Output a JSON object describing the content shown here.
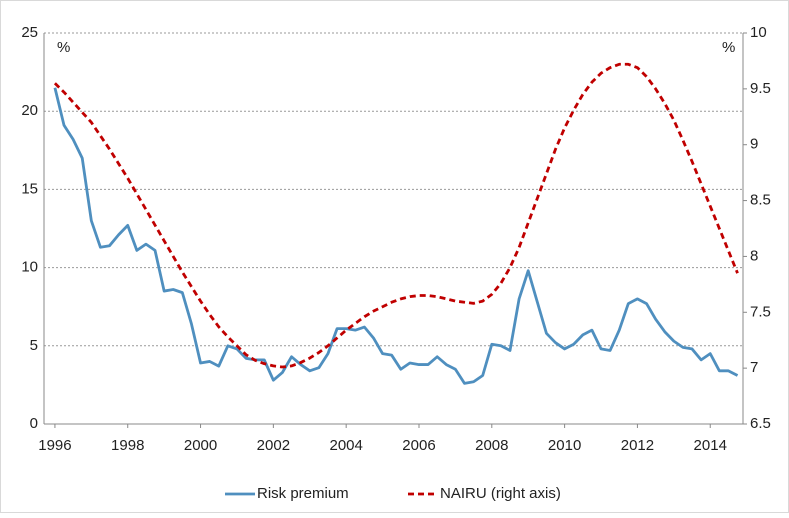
{
  "chart_data": {
    "type": "line",
    "y_label": "%",
    "y2_label": "%",
    "x": [
      1996,
      1996.25,
      1996.5,
      1996.75,
      1997,
      1997.25,
      1997.5,
      1997.75,
      1998,
      1998.25,
      1998.5,
      1998.75,
      1999,
      1999.25,
      1999.5,
      1999.75,
      2000,
      2000.25,
      2000.5,
      2000.75,
      2001,
      2001.25,
      2001.5,
      2001.75,
      2002,
      2002.25,
      2002.5,
      2002.75,
      2003,
      2003.25,
      2003.5,
      2003.75,
      2004,
      2004.25,
      2004.5,
      2004.75,
      2005,
      2005.25,
      2005.5,
      2005.75,
      2006,
      2006.25,
      2006.5,
      2006.75,
      2007,
      2007.25,
      2007.5,
      2007.75,
      2008,
      2008.25,
      2008.5,
      2008.75,
      2009,
      2009.25,
      2009.5,
      2009.75,
      2010,
      2010.25,
      2010.5,
      2010.75,
      2011,
      2011.25,
      2011.5,
      2011.75,
      2012,
      2012.25,
      2012.5,
      2012.75,
      2013,
      2013.25,
      2013.5,
      2013.75,
      2014,
      2014.25,
      2014.5,
      2014.75
    ],
    "series": [
      {
        "name": "Risk premium",
        "color": "#4f8fbf",
        "values": [
          21.5,
          19.1,
          18.2,
          17.0,
          13.0,
          11.3,
          11.4,
          12.1,
          12.7,
          11.1,
          11.5,
          11.1,
          8.5,
          8.6,
          8.4,
          6.4,
          3.9,
          4.0,
          3.7,
          5.0,
          4.8,
          4.2,
          4.1,
          4.1,
          2.8,
          3.3,
          4.3,
          3.8,
          3.4,
          3.6,
          4.5,
          6.1,
          6.1,
          6.0,
          6.2,
          5.5,
          4.5,
          4.4,
          3.5,
          3.9,
          3.8,
          3.8,
          4.3,
          3.8,
          3.5,
          2.6,
          2.7,
          3.1,
          5.1,
          5.0,
          4.7,
          8.0,
          9.8,
          7.8,
          5.8,
          5.2,
          4.8,
          5.1,
          5.7,
          6.0,
          4.8,
          4.7,
          6.0,
          7.7,
          8.0,
          7.7,
          6.7,
          5.9,
          5.3,
          4.9,
          4.8,
          4.1,
          4.5,
          3.4,
          3.4,
          3.1
        ]
      },
      {
        "name": "NAIRU (right axis)",
        "color": "#c00000",
        "dashed": true,
        "axis": "y2",
        "values": [
          9.55,
          9.47,
          9.38,
          9.29,
          9.2,
          9.08,
          8.96,
          8.83,
          8.7,
          8.56,
          8.42,
          8.28,
          8.14,
          8.0,
          7.86,
          7.73,
          7.6,
          7.48,
          7.37,
          7.28,
          7.2,
          7.12,
          7.07,
          7.04,
          7.02,
          7.01,
          7.02,
          7.05,
          7.09,
          7.14,
          7.2,
          7.27,
          7.34,
          7.4,
          7.46,
          7.51,
          7.55,
          7.59,
          7.62,
          7.64,
          7.65,
          7.65,
          7.64,
          7.62,
          7.6,
          7.59,
          7.58,
          7.6,
          7.66,
          7.76,
          7.9,
          8.08,
          8.3,
          8.52,
          8.74,
          8.96,
          9.15,
          9.31,
          9.45,
          9.56,
          9.64,
          9.69,
          9.72,
          9.72,
          9.69,
          9.61,
          9.5,
          9.37,
          9.22,
          9.04,
          8.85,
          8.65,
          8.45,
          8.25,
          8.05,
          7.85
        ]
      }
    ],
    "xlim": [
      1995.7,
      2014.9
    ],
    "xticks": [
      1996,
      1998,
      2000,
      2002,
      2004,
      2006,
      2008,
      2010,
      2012,
      2014
    ],
    "ylim": [
      0,
      25
    ],
    "yticks": [
      0,
      5,
      10,
      15,
      20,
      25
    ],
    "y2lim": [
      6.5,
      10
    ],
    "y2ticks": [
      6.5,
      7,
      7.5,
      8,
      8.5,
      9,
      9.5,
      10
    ],
    "grid": true,
    "legend": "bottom"
  }
}
